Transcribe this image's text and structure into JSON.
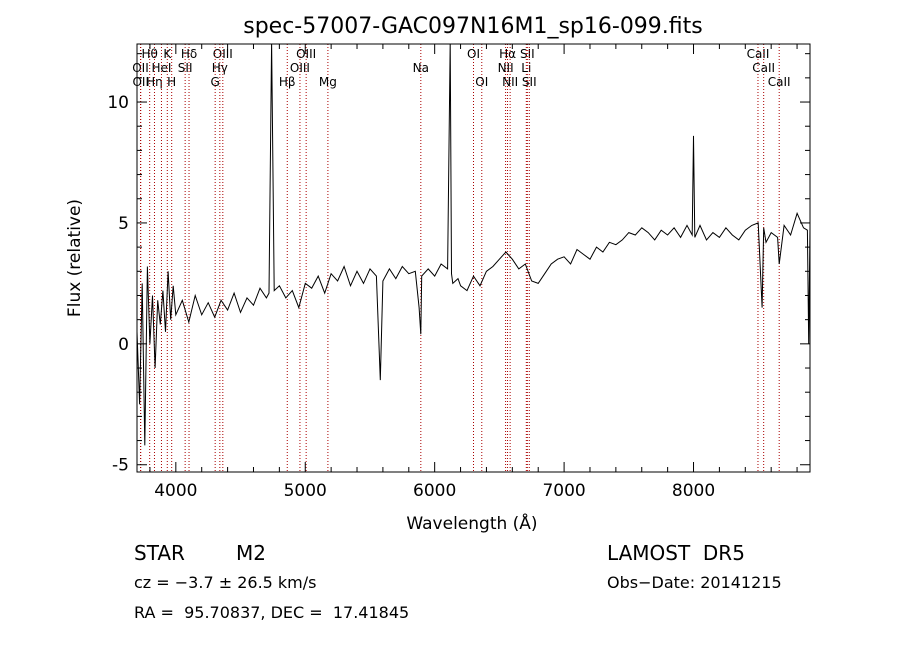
{
  "chart_data": {
    "type": "line",
    "title": "spec-57007-GAC097N16M1_sp16-099.fits",
    "xlabel": "Wavelength (Å)",
    "ylabel": "Flux (relative)",
    "xlim": [
      3700,
      8900
    ],
    "ylim": [
      -5.3,
      12.4
    ],
    "x_ticks": [
      4000,
      5000,
      6000,
      7000,
      8000
    ],
    "y_ticks": [
      -5,
      0,
      5,
      10
    ],
    "grid": false,
    "line_color": "#000000",
    "marker_color": "#aa0000",
    "series": [
      {
        "x": [
          3700,
          3720,
          3740,
          3760,
          3780,
          3800,
          3820,
          3840,
          3860,
          3880,
          3900,
          3920,
          3940,
          3960,
          3980,
          4000,
          4050,
          4100,
          4150,
          4200,
          4250,
          4300,
          4350,
          4400,
          4450,
          4500,
          4550,
          4600,
          4650,
          4700,
          4720,
          4740,
          4760,
          4800,
          4850,
          4900,
          4950,
          5000,
          5050,
          5100,
          5150,
          5200,
          5250,
          5300,
          5350,
          5400,
          5450,
          5500,
          5550,
          5580,
          5600,
          5650,
          5700,
          5750,
          5800,
          5850,
          5880,
          5893,
          5900,
          5950,
          6000,
          6050,
          6100,
          6120,
          6130,
          6140,
          6180,
          6200,
          6250,
          6300,
          6350,
          6400,
          6450,
          6500,
          6550,
          6600,
          6650,
          6700,
          6750,
          6800,
          6850,
          6900,
          6950,
          7000,
          7050,
          7100,
          7150,
          7200,
          7250,
          7300,
          7350,
          7400,
          7450,
          7500,
          7550,
          7600,
          7650,
          7700,
          7750,
          7800,
          7850,
          7900,
          7950,
          7990,
          8000,
          8010,
          8050,
          8100,
          8150,
          8200,
          8250,
          8300,
          8350,
          8400,
          8450,
          8500,
          8530,
          8542,
          8560,
          8600,
          8650,
          8662,
          8700,
          8750,
          8800,
          8850,
          8880,
          8890,
          8900
        ],
        "y": [
          0.5,
          -2.5,
          2.5,
          -4.2,
          3.2,
          0.0,
          2.0,
          -1.0,
          1.8,
          0.8,
          2.2,
          0.5,
          3.0,
          1.0,
          2.4,
          1.2,
          1.8,
          0.9,
          2.0,
          1.2,
          1.7,
          1.1,
          1.8,
          1.4,
          2.1,
          1.3,
          1.9,
          1.6,
          2.3,
          1.9,
          2.1,
          12.5,
          2.2,
          2.4,
          1.9,
          2.2,
          1.5,
          2.5,
          2.3,
          2.8,
          2.1,
          2.9,
          2.6,
          3.2,
          2.4,
          3.0,
          2.5,
          3.1,
          2.8,
          -1.5,
          2.6,
          3.1,
          2.7,
          3.2,
          2.9,
          3.0,
          1.5,
          0.4,
          2.8,
          3.1,
          2.8,
          3.3,
          3.1,
          12.5,
          2.9,
          2.5,
          2.7,
          2.4,
          2.2,
          2.8,
          2.4,
          3.0,
          3.2,
          3.5,
          3.8,
          3.5,
          3.1,
          3.3,
          2.6,
          2.5,
          2.9,
          3.3,
          3.5,
          3.6,
          3.3,
          3.9,
          3.7,
          3.5,
          4.0,
          3.8,
          4.2,
          4.1,
          4.3,
          4.6,
          4.5,
          4.8,
          4.6,
          4.3,
          4.7,
          4.5,
          4.8,
          4.4,
          4.9,
          4.5,
          8.6,
          4.4,
          4.9,
          4.3,
          4.6,
          4.4,
          4.8,
          4.5,
          4.3,
          4.7,
          4.9,
          5.0,
          1.5,
          4.8,
          4.2,
          4.6,
          4.4,
          3.3,
          4.9,
          4.5,
          5.4,
          4.8,
          4.7,
          0.0,
          4.8
        ]
      }
    ],
    "lines": [
      {
        "name": "Hθ",
        "x": 3798,
        "row": 1
      },
      {
        "name": "OII",
        "x": 3727,
        "row": 2
      },
      {
        "name": "OII",
        "x": 3729,
        "row": 3
      },
      {
        "name": "Hη",
        "x": 3835,
        "row": 3
      },
      {
        "name": "HeI",
        "x": 3889,
        "row": 2
      },
      {
        "name": "K",
        "x": 3934,
        "row": 1
      },
      {
        "name": "H",
        "x": 3968,
        "row": 3
      },
      {
        "name": "Hδ",
        "x": 4102,
        "row": 1
      },
      {
        "name": "SII",
        "x": 4072,
        "row": 2
      },
      {
        "name": "OIII",
        "x": 4363,
        "row": 1
      },
      {
        "name": "Hγ",
        "x": 4340,
        "row": 2
      },
      {
        "name": "G",
        "x": 4304,
        "row": 3
      },
      {
        "name": "Hβ",
        "x": 4861,
        "row": 3
      },
      {
        "name": "OIII",
        "x": 4959,
        "row": 2
      },
      {
        "name": "OIII",
        "x": 5007,
        "row": 1
      },
      {
        "name": "Mg",
        "x": 5175,
        "row": 3
      },
      {
        "name": "Na",
        "x": 5893,
        "row": 2
      },
      {
        "name": "OI",
        "x": 6300,
        "row": 1
      },
      {
        "name": "OI",
        "x": 6364,
        "row": 3
      },
      {
        "name": "Hα",
        "x": 6563,
        "row": 1
      },
      {
        "name": "NII",
        "x": 6548,
        "row": 2
      },
      {
        "name": "NII",
        "x": 6583,
        "row": 3
      },
      {
        "name": "SII",
        "x": 6716,
        "row": 1
      },
      {
        "name": "Li",
        "x": 6708,
        "row": 2
      },
      {
        "name": "SII",
        "x": 6731,
        "row": 3
      },
      {
        "name": "CaII",
        "x": 8498,
        "row": 1
      },
      {
        "name": "CaII",
        "x": 8542,
        "row": 2
      },
      {
        "name": "CaII",
        "x": 8662,
        "row": 3
      }
    ]
  },
  "info": {
    "object_class": "STAR",
    "subclass": "M2",
    "survey": "LAMOST  DR5",
    "redshift": "cz = −3.7 ± 26.5 km/s",
    "obs_date": "Obs−Date: 20141215",
    "coords": "RA =  95.70837, DEC =  17.41845"
  }
}
